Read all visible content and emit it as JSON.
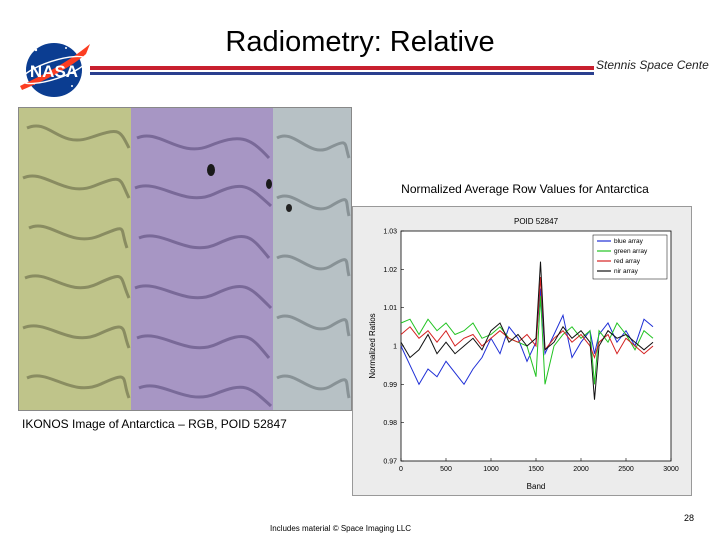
{
  "slide": {
    "title": "Radiometry: Relative",
    "subtitle": "Stennis Space Cente",
    "logo_text": "NASA",
    "image_caption": "IKONOS Image of Antarctica – RGB, POID 52847",
    "chart_caption": "Normalized Average Row Values for Antarctica",
    "footer_note": "Includes material © Space Imaging LLC",
    "page_number": "28"
  },
  "colors": {
    "title_rule_red": "#c8202e",
    "title_rule_blue": "#2a3f8f",
    "nasa_blue": "#0b3d91",
    "nasa_red": "#fc3d21"
  },
  "chart_data": {
    "type": "line",
    "title": "POID 52847",
    "xlabel": "Band",
    "ylabel": "Normalized Ratios",
    "xlim": [
      0,
      3000
    ],
    "ylim": [
      0.97,
      1.03
    ],
    "x_ticks": [
      "0",
      "500",
      "1000",
      "1500",
      "2000",
      "2500",
      "3000"
    ],
    "y_ticks": [
      "0.97",
      "0.98",
      "0.99",
      "1",
      "1.01",
      "1.02",
      "1.03"
    ],
    "legend_position": "top-right",
    "series": [
      {
        "name": "blue array",
        "color": "#1f2fd6",
        "x": [
          0,
          100,
          200,
          300,
          400,
          500,
          600,
          700,
          800,
          900,
          1000,
          1100,
          1200,
          1300,
          1400,
          1500,
          1550,
          1600,
          1700,
          1800,
          1900,
          2000,
          2100,
          2150,
          2200,
          2300,
          2400,
          2500,
          2600,
          2700,
          2800
        ],
        "y": [
          1.0,
          0.995,
          0.99,
          0.994,
          0.992,
          0.996,
          0.993,
          0.99,
          0.994,
          0.997,
          1.002,
          0.998,
          1.005,
          1.002,
          0.996,
          1.001,
          1.015,
          0.998,
          1.003,
          1.008,
          0.997,
          1.001,
          1.004,
          0.998,
          1.003,
          1.006,
          1.001,
          1.004,
          1.0,
          1.007,
          1.005
        ]
      },
      {
        "name": "green array",
        "color": "#22c322",
        "x": [
          0,
          100,
          200,
          300,
          400,
          500,
          600,
          700,
          800,
          900,
          1000,
          1100,
          1200,
          1300,
          1400,
          1500,
          1550,
          1600,
          1700,
          1800,
          1900,
          2000,
          2100,
          2150,
          2200,
          2300,
          2400,
          2500,
          2600,
          2700,
          2800
        ],
        "y": [
          1.006,
          1.007,
          1.003,
          1.007,
          1.004,
          1.006,
          1.003,
          1.004,
          1.006,
          1.002,
          1.003,
          1.005,
          1.002,
          1.001,
          1.0,
          0.992,
          1.013,
          0.99,
          1.0,
          1.003,
          1.005,
          1.002,
          1.004,
          0.99,
          1.004,
          1.001,
          1.006,
          1.003,
          0.999,
          1.004,
          1.002
        ]
      },
      {
        "name": "red array",
        "color": "#d42020",
        "x": [
          0,
          100,
          200,
          300,
          400,
          500,
          600,
          700,
          800,
          900,
          1000,
          1100,
          1200,
          1300,
          1400,
          1500,
          1550,
          1600,
          1700,
          1800,
          1900,
          2000,
          2100,
          2150,
          2200,
          2300,
          2400,
          2500,
          2600,
          2700,
          2800
        ],
        "y": [
          1.003,
          1.005,
          1.002,
          1.004,
          1.001,
          1.004,
          1.0,
          1.002,
          1.003,
          1.0,
          1.002,
          1.004,
          1.002,
          1.001,
          1.003,
          1.0,
          1.018,
          0.999,
          1.002,
          1.004,
          1.001,
          1.003,
          1.0,
          0.997,
          1.001,
          1.003,
          0.998,
          1.002,
          1.0,
          0.998,
          1.0
        ]
      },
      {
        "name": "nir array",
        "color": "#111111",
        "x": [
          0,
          100,
          200,
          300,
          400,
          500,
          600,
          700,
          800,
          900,
          1000,
          1100,
          1200,
          1300,
          1400,
          1500,
          1550,
          1600,
          1700,
          1800,
          1900,
          2000,
          2100,
          2150,
          2200,
          2300,
          2400,
          2500,
          2600,
          2700,
          2800
        ],
        "y": [
          1.001,
          0.997,
          0.999,
          1.003,
          0.998,
          1.001,
          0.998,
          1.0,
          1.002,
          0.999,
          1.004,
          1.006,
          1.001,
          1.003,
          1.0,
          1.002,
          1.022,
          0.999,
          1.001,
          1.005,
          1.002,
          1.004,
          1.001,
          0.986,
          1.0,
          1.004,
          1.002,
          1.003,
          1.001,
          0.999,
          1.001
        ]
      }
    ]
  }
}
